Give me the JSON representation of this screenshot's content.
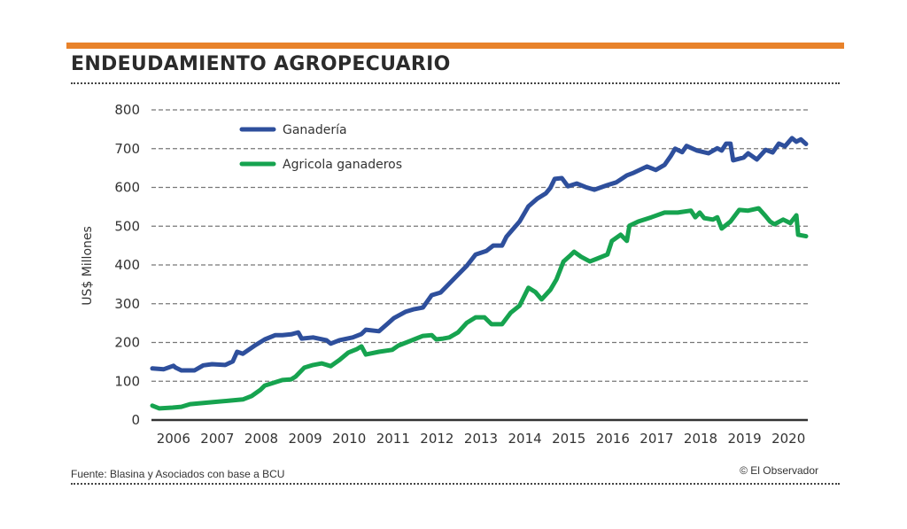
{
  "header": {
    "title": "ENDEUDAMIENTO AGROPECUARIO"
  },
  "footer": {
    "source": "Fuente: Blasina y Asociados con base a BCU",
    "credit": "© El Observador"
  },
  "colors": {
    "accent_bar": "#e8822a",
    "ganaderia": "#2e4f9c",
    "agricola": "#16a34f",
    "grid": "#777777",
    "axis": "#333333"
  },
  "chart_data": {
    "type": "line",
    "title": "ENDEUDAMIENTO AGROPECUARIO",
    "xlabel": "",
    "ylabel": "US$ Millones",
    "ylim": [
      0,
      800
    ],
    "xlim": [
      2006.0,
      2020.95
    ],
    "yticks": [
      0,
      100,
      200,
      300,
      400,
      500,
      600,
      700,
      800
    ],
    "xtick_labels": [
      "2006",
      "2007",
      "2008",
      "2009",
      "2010",
      "2011",
      "2012",
      "2013",
      "2014",
      "2015",
      "2016",
      "2017",
      "2018",
      "2019",
      "2020"
    ],
    "grid": true,
    "legend_position": "top-left",
    "series": [
      {
        "name": "Ganadería",
        "color": "#2e4f9c",
        "points": [
          [
            2006.02,
            133
          ],
          [
            2006.28,
            131
          ],
          [
            2006.5,
            140
          ],
          [
            2006.55,
            135
          ],
          [
            2006.68,
            128
          ],
          [
            2006.98,
            128
          ],
          [
            2007.18,
            141
          ],
          [
            2007.38,
            144
          ],
          [
            2007.68,
            142
          ],
          [
            2007.85,
            151
          ],
          [
            2007.95,
            176
          ],
          [
            2008.08,
            171
          ],
          [
            2008.38,
            194
          ],
          [
            2008.58,
            208
          ],
          [
            2008.82,
            219
          ],
          [
            2008.98,
            219
          ],
          [
            2009.18,
            221
          ],
          [
            2009.34,
            226
          ],
          [
            2009.42,
            210
          ],
          [
            2009.68,
            213
          ],
          [
            2009.98,
            206
          ],
          [
            2010.08,
            197
          ],
          [
            2010.28,
            206
          ],
          [
            2010.58,
            213
          ],
          [
            2010.78,
            222
          ],
          [
            2010.88,
            233
          ],
          [
            2011.18,
            229
          ],
          [
            2011.38,
            249
          ],
          [
            2011.52,
            263
          ],
          [
            2011.78,
            279
          ],
          [
            2011.98,
            286
          ],
          [
            2012.18,
            290
          ],
          [
            2012.38,
            322
          ],
          [
            2012.58,
            329
          ],
          [
            2012.78,
            352
          ],
          [
            2012.98,
            375
          ],
          [
            2013.18,
            398
          ],
          [
            2013.38,
            427
          ],
          [
            2013.62,
            436
          ],
          [
            2013.78,
            450
          ],
          [
            2013.98,
            450
          ],
          [
            2014.08,
            473
          ],
          [
            2014.38,
            512
          ],
          [
            2014.58,
            551
          ],
          [
            2014.78,
            571
          ],
          [
            2014.98,
            585
          ],
          [
            2015.08,
            599
          ],
          [
            2015.18,
            622
          ],
          [
            2015.34,
            624
          ],
          [
            2015.48,
            603
          ],
          [
            2015.68,
            610
          ],
          [
            2015.88,
            601
          ],
          [
            2016.08,
            594
          ],
          [
            2016.38,
            606
          ],
          [
            2016.58,
            613
          ],
          [
            2016.82,
            631
          ],
          [
            2016.98,
            638
          ],
          [
            2017.28,
            654
          ],
          [
            2017.48,
            645
          ],
          [
            2017.68,
            658
          ],
          [
            2017.82,
            681
          ],
          [
            2017.92,
            700
          ],
          [
            2018.08,
            691
          ],
          [
            2018.18,
            707
          ],
          [
            2018.42,
            695
          ],
          [
            2018.68,
            688
          ],
          [
            2018.88,
            701
          ],
          [
            2018.98,
            695
          ],
          [
            2019.08,
            713
          ],
          [
            2019.18,
            713
          ],
          [
            2019.24,
            670
          ],
          [
            2019.48,
            677
          ],
          [
            2019.58,
            688
          ],
          [
            2019.78,
            672
          ],
          [
            2019.98,
            697
          ],
          [
            2020.14,
            690
          ],
          [
            2020.28,
            713
          ],
          [
            2020.42,
            706
          ],
          [
            2020.58,
            727
          ],
          [
            2020.68,
            718
          ],
          [
            2020.78,
            724
          ],
          [
            2020.9,
            712
          ]
        ]
      },
      {
        "name": "Agricola ganaderos",
        "color": "#16a34f",
        "points": [
          [
            2006.02,
            37
          ],
          [
            2006.18,
            30
          ],
          [
            2006.48,
            32
          ],
          [
            2006.68,
            34
          ],
          [
            2006.88,
            41
          ],
          [
            2007.38,
            46
          ],
          [
            2007.78,
            50
          ],
          [
            2008.08,
            53
          ],
          [
            2008.28,
            62
          ],
          [
            2008.48,
            78
          ],
          [
            2008.58,
            89
          ],
          [
            2008.78,
            96
          ],
          [
            2008.98,
            103
          ],
          [
            2009.18,
            105
          ],
          [
            2009.28,
            112
          ],
          [
            2009.48,
            135
          ],
          [
            2009.68,
            142
          ],
          [
            2009.88,
            146
          ],
          [
            2010.08,
            139
          ],
          [
            2010.28,
            155
          ],
          [
            2010.48,
            174
          ],
          [
            2010.68,
            183
          ],
          [
            2010.78,
            190
          ],
          [
            2010.88,
            169
          ],
          [
            2011.18,
            176
          ],
          [
            2011.48,
            181
          ],
          [
            2011.62,
            192
          ],
          [
            2011.98,
            208
          ],
          [
            2012.18,
            217
          ],
          [
            2012.38,
            219
          ],
          [
            2012.48,
            208
          ],
          [
            2012.64,
            210
          ],
          [
            2012.78,
            213
          ],
          [
            2012.98,
            226
          ],
          [
            2013.18,
            251
          ],
          [
            2013.38,
            265
          ],
          [
            2013.58,
            265
          ],
          [
            2013.74,
            247
          ],
          [
            2013.98,
            247
          ],
          [
            2014.18,
            277
          ],
          [
            2014.38,
            295
          ],
          [
            2014.58,
            341
          ],
          [
            2014.74,
            330
          ],
          [
            2014.88,
            311
          ],
          [
            2015.08,
            336
          ],
          [
            2015.22,
            363
          ],
          [
            2015.38,
            409
          ],
          [
            2015.52,
            423
          ],
          [
            2015.62,
            434
          ],
          [
            2015.78,
            421
          ],
          [
            2015.98,
            409
          ],
          [
            2016.14,
            416
          ],
          [
            2016.38,
            427
          ],
          [
            2016.48,
            462
          ],
          [
            2016.68,
            478
          ],
          [
            2016.82,
            462
          ],
          [
            2016.88,
            501
          ],
          [
            2017.08,
            512
          ],
          [
            2017.38,
            523
          ],
          [
            2017.68,
            535
          ],
          [
            2017.98,
            535
          ],
          [
            2018.28,
            540
          ],
          [
            2018.38,
            523
          ],
          [
            2018.48,
            535
          ],
          [
            2018.58,
            521
          ],
          [
            2018.78,
            517
          ],
          [
            2018.88,
            523
          ],
          [
            2018.98,
            494
          ],
          [
            2019.18,
            512
          ],
          [
            2019.38,
            542
          ],
          [
            2019.58,
            540
          ],
          [
            2019.82,
            546
          ],
          [
            2019.98,
            526
          ],
          [
            2020.08,
            512
          ],
          [
            2020.18,
            505
          ],
          [
            2020.38,
            517
          ],
          [
            2020.54,
            508
          ],
          [
            2020.68,
            528
          ],
          [
            2020.72,
            478
          ],
          [
            2020.9,
            474
          ]
        ]
      }
    ]
  }
}
